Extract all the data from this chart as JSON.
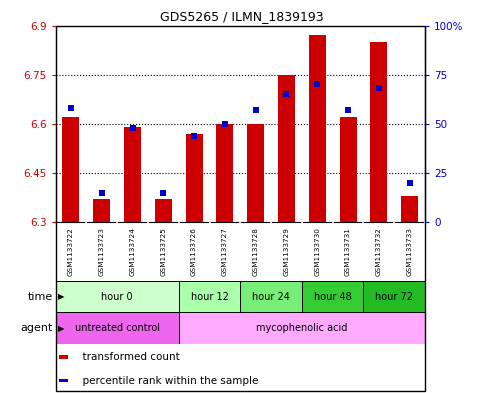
{
  "title": "GDS5265 / ILMN_1839193",
  "samples": [
    "GSM1133722",
    "GSM1133723",
    "GSM1133724",
    "GSM1133725",
    "GSM1133726",
    "GSM1133727",
    "GSM1133728",
    "GSM1133729",
    "GSM1133730",
    "GSM1133731",
    "GSM1133732",
    "GSM1133733"
  ],
  "red_values": [
    6.62,
    6.37,
    6.59,
    6.37,
    6.57,
    6.6,
    6.6,
    6.75,
    6.87,
    6.62,
    6.85,
    6.38
  ],
  "blue_percentiles": [
    58,
    15,
    48,
    15,
    44,
    50,
    57,
    65,
    70,
    57,
    68,
    20
  ],
  "ylim_left": [
    6.3,
    6.9
  ],
  "ylim_right": [
    0,
    100
  ],
  "yticks_left": [
    6.3,
    6.45,
    6.6,
    6.75,
    6.9
  ],
  "yticks_right": [
    0,
    25,
    50,
    75,
    100
  ],
  "ytick_labels_right": [
    "0",
    "25",
    "50",
    "75",
    "100%"
  ],
  "bar_color": "#cc0000",
  "dot_color": "#0000cc",
  "bar_bottom": 6.3,
  "time_groups": [
    {
      "label": "hour 0",
      "indices": [
        0,
        1,
        2,
        3
      ],
      "color": "#ccffcc"
    },
    {
      "label": "hour 12",
      "indices": [
        4,
        5
      ],
      "color": "#aaffaa"
    },
    {
      "label": "hour 24",
      "indices": [
        6,
        7
      ],
      "color": "#77ee77"
    },
    {
      "label": "hour 48",
      "indices": [
        8,
        9
      ],
      "color": "#33cc33"
    },
    {
      "label": "hour 72",
      "indices": [
        10,
        11
      ],
      "color": "#22bb22"
    }
  ],
  "agent_groups": [
    {
      "label": "untreated control",
      "indices": [
        0,
        1,
        2,
        3
      ],
      "color": "#ee66ee"
    },
    {
      "label": "mycophenolic acid",
      "indices": [
        4,
        5,
        6,
        7,
        8,
        9,
        10,
        11
      ],
      "color": "#ffaaff"
    }
  ],
  "legend_items": [
    {
      "color": "#cc0000",
      "label": "transformed count"
    },
    {
      "color": "#0000cc",
      "label": "percentile rank within the sample"
    }
  ],
  "background_color": "#ffffff",
  "tick_label_color_left": "#cc0000",
  "tick_label_color_right": "#0000cc",
  "sample_box_color": "#c8c8c8",
  "border_color": "#888888"
}
